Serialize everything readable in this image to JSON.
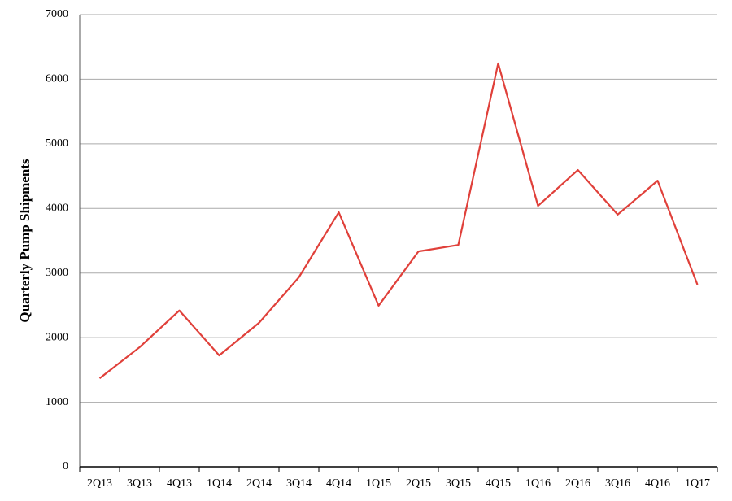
{
  "chart_data": {
    "type": "line",
    "y_label": "Quarterly Pump Shipments",
    "categories": [
      "2Q13",
      "3Q13",
      "4Q13",
      "1Q14",
      "2Q14",
      "3Q14",
      "4Q14",
      "1Q15",
      "2Q15",
      "3Q15",
      "4Q15",
      "1Q16",
      "2Q16",
      "3Q16",
      "4Q16",
      "1Q17"
    ],
    "series": [
      {
        "name": "Quarterly Pump Shipments",
        "color": "#e0403a",
        "values": [
          1370,
          1850,
          2420,
          1725,
          2230,
          2935,
          3940,
          2495,
          3335,
          3435,
          6245,
          4040,
          4595,
          3905,
          4430,
          2820
        ]
      }
    ],
    "ylim": [
      0,
      7000
    ],
    "yticks": [
      0,
      1000,
      2000,
      3000,
      4000,
      5000,
      6000,
      7000
    ],
    "grid": true
  }
}
